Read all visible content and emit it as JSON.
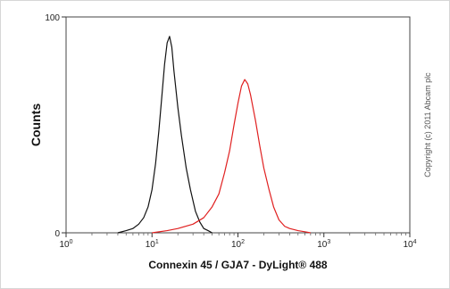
{
  "chart_data": {
    "type": "line",
    "title": "",
    "xlabel": "Connexin 45 / GJA7 - DyLight® 488",
    "ylabel": "Counts",
    "x_scale": "log",
    "xlim": [
      1,
      10000
    ],
    "ylim": [
      0,
      100
    ],
    "x_ticks": [
      {
        "value": 1,
        "base": "10",
        "exp": "0"
      },
      {
        "value": 10,
        "base": "10",
        "exp": "1"
      },
      {
        "value": 100,
        "base": "10",
        "exp": "2"
      },
      {
        "value": 1000,
        "base": "10",
        "exp": "3"
      },
      {
        "value": 10000,
        "base": "10",
        "exp": "4"
      }
    ],
    "y_tick_labels": [
      {
        "value": 0,
        "label": "0"
      },
      {
        "value": 100,
        "label": "100"
      }
    ],
    "grid": false,
    "legend": "none",
    "series": [
      {
        "color": "#111111",
        "x": [
          4,
          5,
          6,
          7,
          8,
          9,
          10,
          11,
          12,
          13,
          14,
          15,
          16,
          17,
          18,
          20,
          22,
          25,
          28,
          32,
          36,
          40,
          45,
          50
        ],
        "y": [
          0,
          1,
          2,
          4,
          7,
          12,
          20,
          32,
          47,
          63,
          78,
          88,
          91,
          86,
          75,
          58,
          45,
          30,
          20,
          10,
          5,
          2,
          1,
          0
        ]
      },
      {
        "color": "#e02020",
        "x": [
          10,
          15,
          20,
          30,
          40,
          50,
          60,
          70,
          80,
          90,
          100,
          110,
          120,
          130,
          140,
          160,
          180,
          200,
          230,
          260,
          300,
          350,
          400,
          500,
          600,
          700
        ],
        "y": [
          0,
          1,
          2,
          4,
          7,
          12,
          18,
          28,
          38,
          50,
          60,
          68,
          71,
          69,
          64,
          52,
          40,
          30,
          20,
          12,
          6,
          3,
          2,
          1,
          0.5,
          0
        ]
      }
    ],
    "annotation": "Copyright (c) 2011 Abcam plc"
  }
}
